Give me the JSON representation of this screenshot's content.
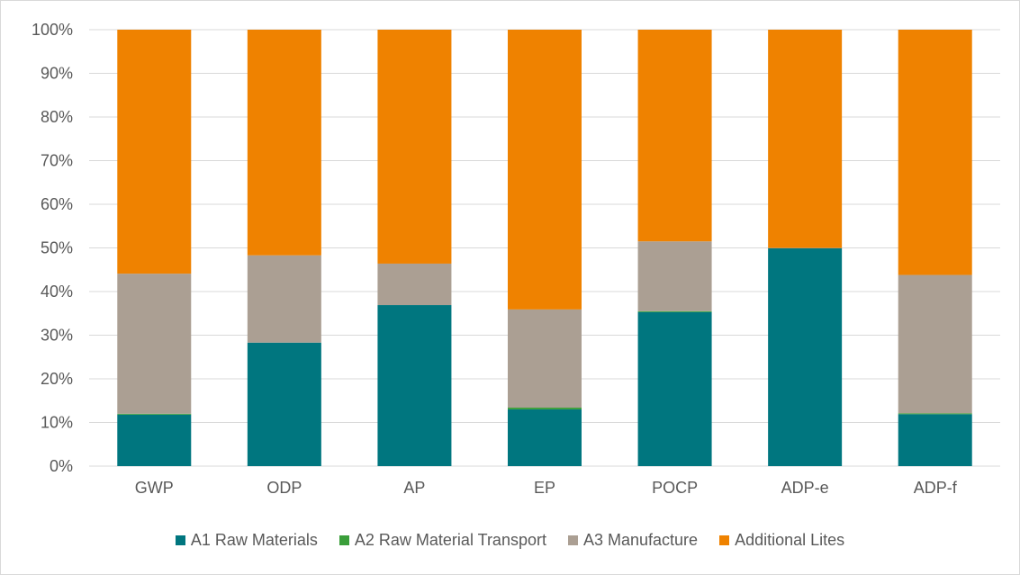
{
  "chart_data": {
    "type": "bar",
    "stacked": true,
    "title": "",
    "xlabel": "",
    "ylabel": "",
    "ylim": [
      0,
      100
    ],
    "yticks": [
      "0%",
      "10%",
      "20%",
      "30%",
      "40%",
      "50%",
      "60%",
      "70%",
      "80%",
      "90%",
      "100%"
    ],
    "grid": true,
    "legend_position": "bottom",
    "categories": [
      "GWP",
      "ODP",
      "AP",
      "EP",
      "POCP",
      "ADP-e",
      "ADP-f"
    ],
    "series": [
      {
        "name": "A1 Raw Materials",
        "color": "#00767f",
        "values": [
          11.8,
          28.3,
          36.9,
          13.0,
          35.3,
          49.9,
          11.9
        ]
      },
      {
        "name": "A2 Raw Material Transport",
        "color": "#3a9e3a",
        "values": [
          0.2,
          0.0,
          0.0,
          0.4,
          0.2,
          0.0,
          0.2
        ]
      },
      {
        "name": "A3 Manufacture",
        "color": "#ab9f93",
        "values": [
          32.1,
          20.0,
          9.5,
          22.5,
          16.0,
          0.1,
          31.7
        ]
      },
      {
        "name": "Additional Lites",
        "color": "#ef8200",
        "values": [
          55.9,
          51.7,
          53.6,
          64.1,
          48.5,
          50.0,
          56.2
        ]
      }
    ]
  }
}
